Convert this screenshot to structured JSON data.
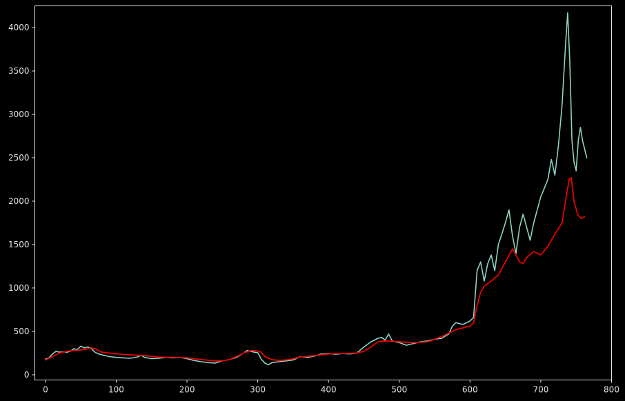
{
  "chart_data": {
    "type": "line",
    "title": "",
    "xlabel": "",
    "ylabel": "",
    "xlim": [
      -15,
      800
    ],
    "ylim": [
      -60,
      4250
    ],
    "grid": false,
    "legend": "none",
    "x_ticks": [
      0,
      100,
      200,
      300,
      400,
      500,
      600,
      700,
      800
    ],
    "y_ticks": [
      0,
      500,
      1000,
      1500,
      2000,
      2500,
      3000,
      3500,
      4000
    ],
    "background_color": "#000000",
    "axes_color": "#e6e6e6",
    "series": [
      {
        "color": "#8dd3c7",
        "points": [
          [
            0,
            180
          ],
          [
            5,
            195
          ],
          [
            10,
            240
          ],
          [
            15,
            270
          ],
          [
            20,
            260
          ],
          [
            25,
            265
          ],
          [
            30,
            260
          ],
          [
            35,
            270
          ],
          [
            40,
            300
          ],
          [
            45,
            290
          ],
          [
            50,
            330
          ],
          [
            55,
            310
          ],
          [
            60,
            320
          ],
          [
            65,
            300
          ],
          [
            70,
            260
          ],
          [
            75,
            240
          ],
          [
            80,
            230
          ],
          [
            90,
            210
          ],
          [
            100,
            200
          ],
          [
            110,
            195
          ],
          [
            120,
            190
          ],
          [
            130,
            205
          ],
          [
            135,
            225
          ],
          [
            140,
            200
          ],
          [
            150,
            185
          ],
          [
            160,
            190
          ],
          [
            170,
            200
          ],
          [
            180,
            195
          ],
          [
            190,
            200
          ],
          [
            200,
            185
          ],
          [
            210,
            165
          ],
          [
            220,
            150
          ],
          [
            230,
            140
          ],
          [
            240,
            135
          ],
          [
            250,
            160
          ],
          [
            260,
            175
          ],
          [
            270,
            200
          ],
          [
            280,
            250
          ],
          [
            285,
            280
          ],
          [
            290,
            270
          ],
          [
            295,
            260
          ],
          [
            300,
            255
          ],
          [
            305,
            180
          ],
          [
            310,
            135
          ],
          [
            315,
            115
          ],
          [
            320,
            140
          ],
          [
            330,
            150
          ],
          [
            340,
            160
          ],
          [
            350,
            170
          ],
          [
            360,
            210
          ],
          [
            370,
            200
          ],
          [
            380,
            215
          ],
          [
            390,
            240
          ],
          [
            400,
            245
          ],
          [
            410,
            235
          ],
          [
            420,
            245
          ],
          [
            430,
            240
          ],
          [
            440,
            250
          ],
          [
            450,
            320
          ],
          [
            460,
            380
          ],
          [
            470,
            420
          ],
          [
            475,
            430
          ],
          [
            480,
            400
          ],
          [
            485,
            470
          ],
          [
            490,
            390
          ],
          [
            500,
            370
          ],
          [
            510,
            340
          ],
          [
            520,
            360
          ],
          [
            530,
            380
          ],
          [
            540,
            390
          ],
          [
            550,
            410
          ],
          [
            560,
            420
          ],
          [
            570,
            470
          ],
          [
            575,
            560
          ],
          [
            580,
            600
          ],
          [
            590,
            580
          ],
          [
            600,
            620
          ],
          [
            605,
            660
          ],
          [
            610,
            1200
          ],
          [
            615,
            1300
          ],
          [
            620,
            1080
          ],
          [
            625,
            1280
          ],
          [
            630,
            1380
          ],
          [
            635,
            1200
          ],
          [
            640,
            1500
          ],
          [
            645,
            1620
          ],
          [
            650,
            1750
          ],
          [
            655,
            1900
          ],
          [
            660,
            1600
          ],
          [
            665,
            1400
          ],
          [
            670,
            1700
          ],
          [
            675,
            1850
          ],
          [
            680,
            1700
          ],
          [
            685,
            1550
          ],
          [
            690,
            1750
          ],
          [
            695,
            1900
          ],
          [
            700,
            2050
          ],
          [
            705,
            2150
          ],
          [
            710,
            2250
          ],
          [
            715,
            2480
          ],
          [
            720,
            2300
          ],
          [
            725,
            2650
          ],
          [
            730,
            3100
          ],
          [
            735,
            3800
          ],
          [
            738,
            4170
          ],
          [
            741,
            3600
          ],
          [
            744,
            2700
          ],
          [
            747,
            2450
          ],
          [
            750,
            2350
          ],
          [
            753,
            2700
          ],
          [
            756,
            2850
          ],
          [
            759,
            2700
          ],
          [
            762,
            2600
          ],
          [
            765,
            2500
          ]
        ]
      },
      {
        "color": "#ee0000",
        "points": [
          [
            0,
            170
          ],
          [
            10,
            210
          ],
          [
            20,
            250
          ],
          [
            30,
            270
          ],
          [
            40,
            280
          ],
          [
            50,
            285
          ],
          [
            60,
            300
          ],
          [
            65,
            310
          ],
          [
            70,
            300
          ],
          [
            80,
            260
          ],
          [
            90,
            250
          ],
          [
            100,
            240
          ],
          [
            120,
            230
          ],
          [
            140,
            220
          ],
          [
            160,
            205
          ],
          [
            180,
            200
          ],
          [
            200,
            195
          ],
          [
            220,
            175
          ],
          [
            240,
            160
          ],
          [
            250,
            160
          ],
          [
            260,
            175
          ],
          [
            270,
            210
          ],
          [
            280,
            250
          ],
          [
            290,
            280
          ],
          [
            300,
            275
          ],
          [
            305,
            260
          ],
          [
            310,
            210
          ],
          [
            320,
            175
          ],
          [
            330,
            165
          ],
          [
            340,
            170
          ],
          [
            350,
            185
          ],
          [
            360,
            205
          ],
          [
            380,
            220
          ],
          [
            400,
            240
          ],
          [
            420,
            245
          ],
          [
            440,
            250
          ],
          [
            450,
            270
          ],
          [
            460,
            320
          ],
          [
            470,
            380
          ],
          [
            480,
            390
          ],
          [
            490,
            385
          ],
          [
            500,
            380
          ],
          [
            520,
            370
          ],
          [
            540,
            380
          ],
          [
            560,
            440
          ],
          [
            580,
            520
          ],
          [
            600,
            560
          ],
          [
            605,
            600
          ],
          [
            610,
            800
          ],
          [
            615,
            950
          ],
          [
            620,
            1020
          ],
          [
            630,
            1080
          ],
          [
            640,
            1150
          ],
          [
            650,
            1300
          ],
          [
            660,
            1450
          ],
          [
            665,
            1380
          ],
          [
            670,
            1300
          ],
          [
            675,
            1280
          ],
          [
            680,
            1350
          ],
          [
            690,
            1420
          ],
          [
            700,
            1380
          ],
          [
            710,
            1480
          ],
          [
            720,
            1620
          ],
          [
            730,
            1750
          ],
          [
            735,
            2000
          ],
          [
            740,
            2250
          ],
          [
            743,
            2270
          ],
          [
            747,
            2000
          ],
          [
            752,
            1850
          ],
          [
            757,
            1800
          ],
          [
            762,
            1820
          ]
        ]
      }
    ]
  }
}
